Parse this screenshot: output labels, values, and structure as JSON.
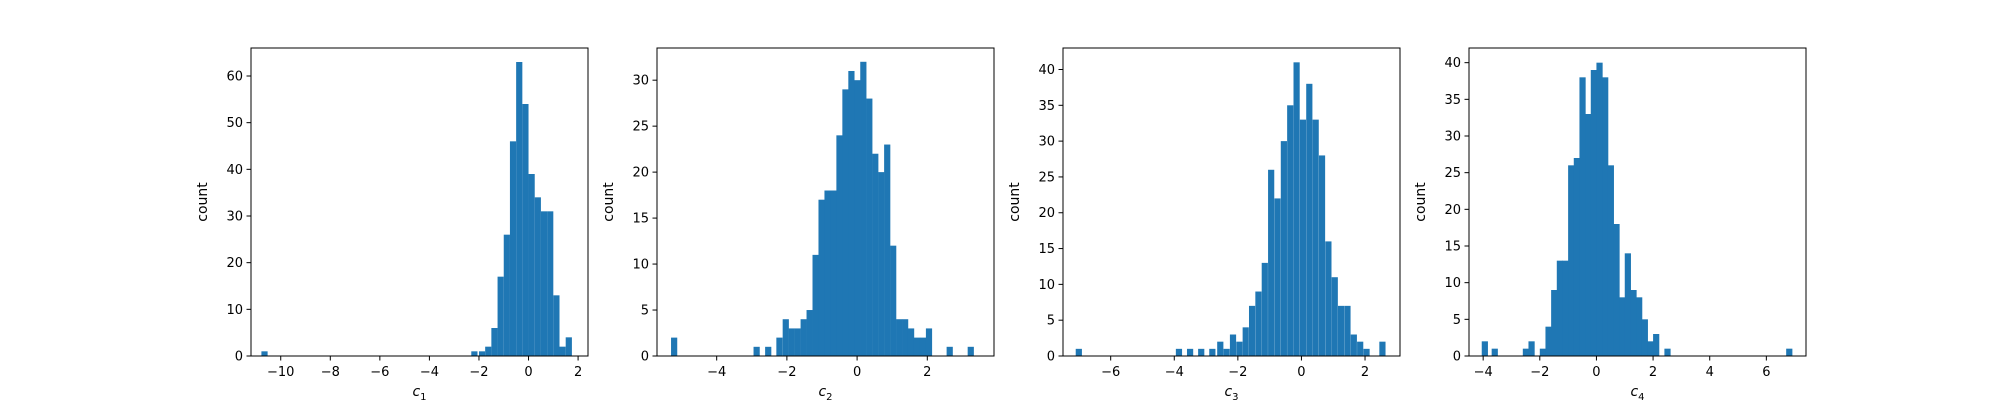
{
  "chart_data": [
    {
      "type": "bar",
      "xlabel_base": "c",
      "xlabel_sub": "1",
      "ylabel": "count",
      "xlim": [
        -11.2,
        2.4
      ],
      "ylim": [
        0,
        66
      ],
      "xticks": [
        -10,
        -8,
        -6,
        -4,
        -2,
        0,
        2
      ],
      "yticks": [
        0,
        10,
        20,
        30,
        40,
        50,
        60
      ],
      "bins": [
        [
          -10.78,
          1
        ],
        [
          -2.31,
          1
        ],
        [
          -2.0,
          1
        ],
        [
          -1.75,
          2
        ],
        [
          -1.5,
          6
        ],
        [
          -1.25,
          17
        ],
        [
          -1.0,
          26
        ],
        [
          -0.75,
          46
        ],
        [
          -0.5,
          63
        ],
        [
          -0.25,
          54
        ],
        [
          0.0,
          39
        ],
        [
          0.25,
          34
        ],
        [
          0.5,
          31
        ],
        [
          0.75,
          31
        ],
        [
          1.0,
          13
        ],
        [
          1.25,
          2
        ],
        [
          1.5,
          4
        ]
      ]
    },
    {
      "type": "bar",
      "xlabel_base": "c",
      "xlabel_sub": "2",
      "ylabel": "count",
      "xlim": [
        -5.7,
        3.9
      ],
      "ylim": [
        0,
        33.5
      ],
      "xticks": [
        -4,
        -2,
        0,
        2
      ],
      "yticks": [
        0,
        5,
        10,
        15,
        20,
        25,
        30
      ],
      "bins": [
        [
          -5.3,
          2
        ],
        [
          -2.95,
          1
        ],
        [
          -2.62,
          1
        ],
        [
          -2.3,
          2
        ],
        [
          -2.12,
          4
        ],
        [
          -1.95,
          3
        ],
        [
          -1.78,
          3
        ],
        [
          -1.61,
          4
        ],
        [
          -1.44,
          5
        ],
        [
          -1.27,
          11
        ],
        [
          -1.1,
          17
        ],
        [
          -0.93,
          18
        ],
        [
          -0.76,
          18
        ],
        [
          -0.59,
          24
        ],
        [
          -0.42,
          29
        ],
        [
          -0.25,
          31
        ],
        [
          -0.08,
          30
        ],
        [
          0.09,
          32
        ],
        [
          0.26,
          28
        ],
        [
          0.43,
          22
        ],
        [
          0.6,
          20
        ],
        [
          0.77,
          23
        ],
        [
          0.94,
          12
        ],
        [
          1.11,
          4
        ],
        [
          1.28,
          4
        ],
        [
          1.45,
          3
        ],
        [
          1.62,
          2
        ],
        [
          1.79,
          2
        ],
        [
          1.96,
          3
        ],
        [
          2.55,
          1
        ],
        [
          3.15,
          1
        ]
      ]
    },
    {
      "type": "bar",
      "xlabel_base": "c",
      "xlabel_sub": "3",
      "ylabel": "count",
      "xlim": [
        -7.5,
        3.1
      ],
      "ylim": [
        0,
        43
      ],
      "xticks": [
        -6,
        -4,
        -2,
        0,
        2
      ],
      "yticks": [
        0,
        5,
        10,
        15,
        20,
        25,
        30,
        35,
        40
      ],
      "bins": [
        [
          -7.1,
          1
        ],
        [
          -3.95,
          1
        ],
        [
          -3.6,
          1
        ],
        [
          -3.25,
          1
        ],
        [
          -2.9,
          1
        ],
        [
          -2.65,
          2
        ],
        [
          -2.45,
          1
        ],
        [
          -2.25,
          3
        ],
        [
          -2.05,
          2
        ],
        [
          -1.85,
          4
        ],
        [
          -1.65,
          7
        ],
        [
          -1.45,
          9
        ],
        [
          -1.25,
          13
        ],
        [
          -1.05,
          26
        ],
        [
          -0.85,
          22
        ],
        [
          -0.65,
          30
        ],
        [
          -0.45,
          35
        ],
        [
          -0.25,
          41
        ],
        [
          -0.05,
          33
        ],
        [
          0.15,
          38
        ],
        [
          0.35,
          33
        ],
        [
          0.55,
          28
        ],
        [
          0.75,
          16
        ],
        [
          0.95,
          11
        ],
        [
          1.15,
          7
        ],
        [
          1.35,
          7
        ],
        [
          1.55,
          3
        ],
        [
          1.75,
          2
        ],
        [
          1.95,
          1
        ],
        [
          2.45,
          2
        ]
      ]
    },
    {
      "type": "bar",
      "xlabel_base": "c",
      "xlabel_sub": "4",
      "ylabel": "count",
      "xlim": [
        -4.5,
        7.4
      ],
      "ylim": [
        0,
        42
      ],
      "xticks": [
        -4,
        -2,
        0,
        2,
        4,
        6
      ],
      "yticks": [
        0,
        5,
        10,
        15,
        20,
        25,
        30,
        35,
        40
      ],
      "bins": [
        [
          -4.05,
          2
        ],
        [
          -3.7,
          1
        ],
        [
          -2.6,
          1
        ],
        [
          -2.4,
          2
        ],
        [
          -2.0,
          1
        ],
        [
          -1.8,
          4
        ],
        [
          -1.6,
          9
        ],
        [
          -1.4,
          13
        ],
        [
          -1.2,
          13
        ],
        [
          -1.0,
          26
        ],
        [
          -0.8,
          27
        ],
        [
          -0.6,
          38
        ],
        [
          -0.4,
          33
        ],
        [
          -0.2,
          39
        ],
        [
          0.0,
          40
        ],
        [
          0.2,
          38
        ],
        [
          0.4,
          26
        ],
        [
          0.6,
          18
        ],
        [
          0.8,
          8
        ],
        [
          1.0,
          14
        ],
        [
          1.2,
          9
        ],
        [
          1.4,
          8
        ],
        [
          1.6,
          5
        ],
        [
          1.8,
          2
        ],
        [
          2.0,
          3
        ],
        [
          2.4,
          1
        ],
        [
          6.7,
          1
        ]
      ]
    }
  ],
  "colors": {
    "bar": "#1f77b4",
    "axis": "#000000"
  }
}
